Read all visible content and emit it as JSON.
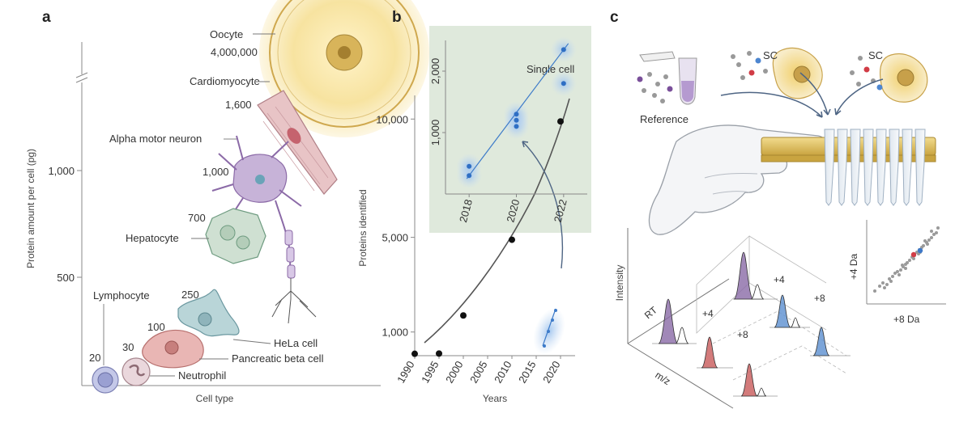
{
  "panels": {
    "a": "a",
    "b": "b",
    "c": "c"
  },
  "panel_a": {
    "y_axis_title": "Protein amount per cell (pg)",
    "x_axis_title": "Cell type",
    "y_ticks": [
      "1,000",
      "500"
    ],
    "cells": [
      {
        "name": "Oocyte",
        "amount": "4,000,000"
      },
      {
        "name": "Cardiomyocyte",
        "amount": "1,600"
      },
      {
        "name": "Alpha motor neuron",
        "amount": "1,000"
      },
      {
        "name": "Hepatocyte",
        "amount": "700"
      },
      {
        "name": "HeLa cell",
        "amount": "250"
      },
      {
        "name": "Pancreatic beta cell",
        "amount": "100"
      },
      {
        "name": "Neutrophil",
        "amount": "30"
      },
      {
        "name": "Lymphocyte",
        "amount": "20"
      }
    ]
  },
  "panel_b": {
    "y_axis_title": "Proteins identified",
    "x_axis_title": "Years",
    "y_ticks": [
      "10,000",
      "5,000",
      "1,000"
    ],
    "x_ticks": [
      "1990",
      "1995",
      "2000",
      "2005",
      "2010",
      "2015",
      "2020"
    ],
    "inset_title": "Single cell",
    "inset_y_ticks": [
      "2,000",
      "1,000"
    ],
    "inset_x_ticks": [
      "2018",
      "2020",
      "2022"
    ]
  },
  "chart_data": [
    {
      "type": "scatter",
      "title": "",
      "xlabel": "Years",
      "ylabel": "Proteins identified",
      "x": [
        1990,
        1995,
        2000,
        2010,
        2020
      ],
      "y": [
        80,
        90,
        1700,
        4900,
        9900
      ],
      "xlim": [
        1990,
        2023
      ],
      "ylim": [
        0,
        11000
      ]
    },
    {
      "type": "scatter",
      "title": "Single cell",
      "xlabel": "",
      "ylabel": "",
      "x": [
        2018,
        2018,
        2020,
        2020,
        2020,
        2022,
        2022
      ],
      "y": [
        300,
        450,
        1100,
        1200,
        1300,
        1800,
        2350
      ],
      "xlim": [
        2017,
        2023
      ],
      "ylim": [
        0,
        2500
      ]
    }
  ],
  "panel_c": {
    "reference_label": "Reference",
    "sc_labels": [
      "SC",
      "SC"
    ],
    "intensity_label": "Intensity",
    "rt_label": "RT",
    "mz_label": "m/z",
    "shift_labels": [
      "+4",
      "+8",
      "+4",
      "+8"
    ],
    "scatter_y_label": "+4 Da",
    "scatter_x_label": "+8 Da"
  },
  "colors": {
    "purple": "#8a6aa6",
    "blue": "#5b8fd0",
    "red": "#c85a5a",
    "gold": "#e8c25a",
    "green_bg": "#dfe9dc"
  }
}
